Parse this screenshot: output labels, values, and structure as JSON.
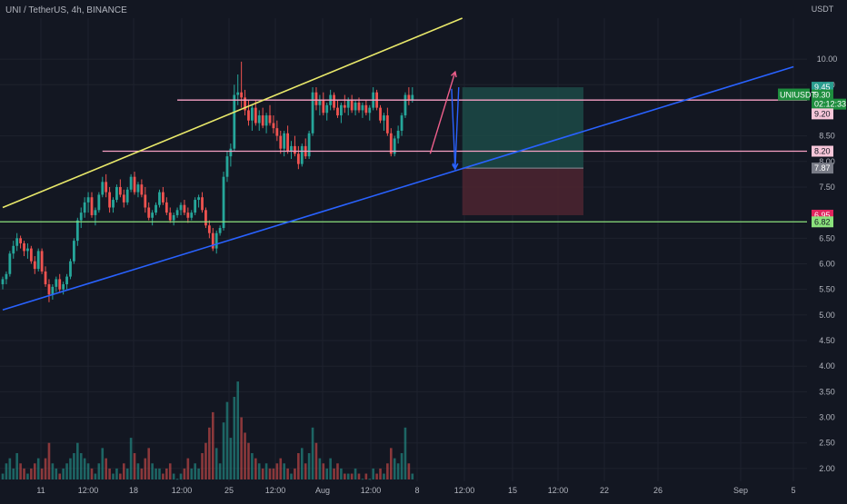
{
  "header": {
    "title": "UNI / TetherUS, 4h, BINANCE",
    "currency": "USDT"
  },
  "colors": {
    "background": "#131722",
    "up": "#26a69a",
    "down": "#ef5350",
    "grid": "#1e222d",
    "text": "#b2b5be",
    "yellow_line": "#e8e86a",
    "blue_line": "#2962ff",
    "pink_line": "#f7a1c4",
    "green_line": "#8be27c",
    "tp_zone": "#1c4a46",
    "sl_zone": "#4d2430"
  },
  "chart_data": {
    "type": "candlestick",
    "symbol": "UNIUSDT",
    "y_axis": {
      "min": 1.75,
      "max": 10.8,
      "ticks": [
        10.0,
        9.5,
        8.5,
        8.0,
        7.5,
        6.5,
        6.0,
        5.5,
        5.0,
        4.5,
        4.0,
        3.5,
        3.0,
        2.5,
        2.0
      ],
      "tick_labels": [
        "10.00",
        "9.50",
        "8.50",
        "8.00",
        "7.50",
        "6.50",
        "6.00",
        "5.50",
        "5.00",
        "4.50",
        "4.00",
        "3.50",
        "3.00",
        "2.50",
        "2.00"
      ]
    },
    "x_axis": {
      "tick_labels": [
        "11",
        "12:00",
        "18",
        "12:00",
        "25",
        "12:00",
        "Aug",
        "12:00",
        "8",
        "12:00",
        "15",
        "12:00",
        "22",
        "26",
        "Sep",
        "5"
      ]
    },
    "price_tags": [
      {
        "label": "9.45",
        "value": 9.45,
        "style": "teal"
      },
      {
        "label": "9.30",
        "value": 9.3,
        "style": "green"
      },
      {
        "label": "02:12:33",
        "value": 9.12,
        "style": "green-sub"
      },
      {
        "label": "9.20",
        "value": 8.93,
        "style": "pink"
      },
      {
        "label": "8.20",
        "value": 8.2,
        "style": "pink"
      },
      {
        "label": "7.87",
        "value": 7.87,
        "style": "gray"
      },
      {
        "label": "6.95",
        "value": 6.95,
        "style": "red"
      },
      {
        "label": "6.82",
        "value": 6.82,
        "style": "greenline"
      }
    ],
    "symbol_badge": "UNIUSDT",
    "horizontal_levels": [
      {
        "value": 9.2,
        "color": "pink",
        "from_bar": 49
      },
      {
        "value": 8.2,
        "color": "pink",
        "from_bar": 28
      },
      {
        "value": 6.82,
        "color": "green",
        "from_bar": 0
      }
    ],
    "trendlines": [
      {
        "color": "yellow",
        "p1": [
          0,
          7.1
        ],
        "p2": [
          129,
          10.8
        ]
      },
      {
        "color": "blue",
        "p1": [
          0,
          5.1
        ],
        "p2": [
          222,
          9.85
        ]
      }
    ],
    "position": {
      "entry": 7.87,
      "target": 9.45,
      "stop": 6.95,
      "from_bar": 129,
      "to_bar": 163
    },
    "projection_arrows": [
      [
        [
          120,
          8.15
        ],
        [
          127,
          9.75
        ]
      ],
      [
        [
          128,
          9.45
        ],
        [
          127,
          7.87
        ]
      ],
      [
        [
          126,
          9.42
        ],
        [
          127,
          7.85
        ]
      ]
    ],
    "candles": [
      [
        5.6,
        5.75,
        5.5,
        5.7,
        1.9
      ],
      [
        5.7,
        5.85,
        5.6,
        5.8,
        2.1
      ],
      [
        5.8,
        6.25,
        5.75,
        6.2,
        2.2
      ],
      [
        6.2,
        6.45,
        6.1,
        6.35,
        2.0
      ],
      [
        6.35,
        6.6,
        6.25,
        6.5,
        2.3
      ],
      [
        6.5,
        6.55,
        6.3,
        6.4,
        2.1
      ],
      [
        6.4,
        6.45,
        6.15,
        6.25,
        2.0
      ],
      [
        6.25,
        6.4,
        6.1,
        6.3,
        1.9
      ],
      [
        6.3,
        6.35,
        6.0,
        6.05,
        2.0
      ],
      [
        6.05,
        6.15,
        5.8,
        5.9,
        2.1
      ],
      [
        5.9,
        6.3,
        5.85,
        6.25,
        2.2
      ],
      [
        6.25,
        6.3,
        5.8,
        5.85,
        2.0
      ],
      [
        5.85,
        5.95,
        5.55,
        5.6,
        2.2
      ],
      [
        5.6,
        5.7,
        5.25,
        5.4,
        2.5
      ],
      [
        5.4,
        5.6,
        5.3,
        5.55,
        2.1
      ],
      [
        5.55,
        5.75,
        5.45,
        5.7,
        2.0
      ],
      [
        5.7,
        5.8,
        5.45,
        5.5,
        1.9
      ],
      [
        5.5,
        5.65,
        5.4,
        5.6,
        2.0
      ],
      [
        5.6,
        5.8,
        5.5,
        5.75,
        2.1
      ],
      [
        5.75,
        6.1,
        5.7,
        6.05,
        2.2
      ],
      [
        6.05,
        6.5,
        6.0,
        6.45,
        2.3
      ],
      [
        6.45,
        6.9,
        6.35,
        6.85,
        2.5
      ],
      [
        6.85,
        7.1,
        6.7,
        7.0,
        2.3
      ],
      [
        7.0,
        7.3,
        6.9,
        7.2,
        2.2
      ],
      [
        7.2,
        7.4,
        7.0,
        7.3,
        2.1
      ],
      [
        7.3,
        7.4,
        6.9,
        6.95,
        2.0
      ],
      [
        6.95,
        7.1,
        6.75,
        7.05,
        1.9
      ],
      [
        7.05,
        7.4,
        7.0,
        7.35,
        2.1
      ],
      [
        7.35,
        7.7,
        7.3,
        7.6,
        2.4
      ],
      [
        7.6,
        7.75,
        7.3,
        7.4,
        2.2
      ],
      [
        7.4,
        7.5,
        7.0,
        7.1,
        2.0
      ],
      [
        7.1,
        7.3,
        7.0,
        7.25,
        1.9
      ],
      [
        7.25,
        7.55,
        7.2,
        7.5,
        2.0
      ],
      [
        7.5,
        7.65,
        7.3,
        7.35,
        1.9
      ],
      [
        7.35,
        7.45,
        7.1,
        7.2,
        2.1
      ],
      [
        7.2,
        7.5,
        7.15,
        7.45,
        2.0
      ],
      [
        7.45,
        7.75,
        7.4,
        7.7,
        2.6
      ],
      [
        7.7,
        7.8,
        7.35,
        7.4,
        2.3
      ],
      [
        7.4,
        7.6,
        7.3,
        7.55,
        2.1
      ],
      [
        7.55,
        7.65,
        7.3,
        7.35,
        2.0
      ],
      [
        7.35,
        7.5,
        7.0,
        7.1,
        2.2
      ],
      [
        7.1,
        7.2,
        6.85,
        6.9,
        2.4
      ],
      [
        6.9,
        7.05,
        6.75,
        7.0,
        2.1
      ],
      [
        7.0,
        7.2,
        6.95,
        7.15,
        2.0
      ],
      [
        7.15,
        7.45,
        7.1,
        7.4,
        2.0
      ],
      [
        7.4,
        7.5,
        7.15,
        7.2,
        1.9
      ],
      [
        7.2,
        7.3,
        6.95,
        7.0,
        2.0
      ],
      [
        7.0,
        7.1,
        6.8,
        6.85,
        2.1
      ],
      [
        6.85,
        7.0,
        6.75,
        6.95,
        1.9
      ],
      [
        6.95,
        7.1,
        6.9,
        7.05,
        1.8
      ],
      [
        7.05,
        7.2,
        6.95,
        7.15,
        1.9
      ],
      [
        7.15,
        7.25,
        6.95,
        7.0,
        2.0
      ],
      [
        7.0,
        7.1,
        6.8,
        6.9,
        2.2
      ],
      [
        6.9,
        7.05,
        6.85,
        7.0,
        2.0
      ],
      [
        7.0,
        7.3,
        6.95,
        7.25,
        2.1
      ],
      [
        7.25,
        7.35,
        7.1,
        7.3,
        2.0
      ],
      [
        7.3,
        7.4,
        7.0,
        7.05,
        2.3
      ],
      [
        7.05,
        7.1,
        6.7,
        6.75,
        2.5
      ],
      [
        6.75,
        6.85,
        6.5,
        6.6,
        2.8
      ],
      [
        6.6,
        6.7,
        6.25,
        6.3,
        3.1
      ],
      [
        6.3,
        6.65,
        6.2,
        6.6,
        2.4
      ],
      [
        6.6,
        6.75,
        6.55,
        6.7,
        2.1
      ],
      [
        6.7,
        7.8,
        6.65,
        7.7,
        2.9
      ],
      [
        7.7,
        8.2,
        7.6,
        8.1,
        3.3
      ],
      [
        8.1,
        8.35,
        7.9,
        8.25,
        2.6
      ],
      [
        8.25,
        9.5,
        8.2,
        9.3,
        3.4
      ],
      [
        9.3,
        9.7,
        9.1,
        9.35,
        3.7
      ],
      [
        9.35,
        9.95,
        9.05,
        9.25,
        3.0
      ],
      [
        9.25,
        9.4,
        8.9,
        9.0,
        2.7
      ],
      [
        9.0,
        9.2,
        8.7,
        8.8,
        2.5
      ],
      [
        8.8,
        9.1,
        8.6,
        9.05,
        2.3
      ],
      [
        9.05,
        9.2,
        8.7,
        8.75,
        2.2
      ],
      [
        8.75,
        9.0,
        8.6,
        8.9,
        2.1
      ],
      [
        8.9,
        9.05,
        8.65,
        8.7,
        2.0
      ],
      [
        8.7,
        8.95,
        8.55,
        8.9,
        2.1
      ],
      [
        8.9,
        9.1,
        8.7,
        8.75,
        2.0
      ],
      [
        8.75,
        8.9,
        8.55,
        8.65,
        2.0
      ],
      [
        8.65,
        8.8,
        8.4,
        8.5,
        2.1
      ],
      [
        8.5,
        8.6,
        8.15,
        8.25,
        2.2
      ],
      [
        8.25,
        8.6,
        8.1,
        8.55,
        2.1
      ],
      [
        8.55,
        8.7,
        8.15,
        8.2,
        2.0
      ],
      [
        8.2,
        8.4,
        8.05,
        8.3,
        1.9
      ],
      [
        8.3,
        8.5,
        8.1,
        8.15,
        2.0
      ],
      [
        8.15,
        8.3,
        7.85,
        7.95,
        2.3
      ],
      [
        7.95,
        8.35,
        7.9,
        8.3,
        2.4
      ],
      [
        8.3,
        8.45,
        8.05,
        8.1,
        2.1
      ],
      [
        8.1,
        8.6,
        8.05,
        8.55,
        2.3
      ],
      [
        8.55,
        9.45,
        8.5,
        9.35,
        2.8
      ],
      [
        9.35,
        9.45,
        9.0,
        9.1,
        2.5
      ],
      [
        9.1,
        9.3,
        8.9,
        9.2,
        2.2
      ],
      [
        9.2,
        9.35,
        8.9,
        8.95,
        2.1
      ],
      [
        8.95,
        9.15,
        8.8,
        9.1,
        2.0
      ],
      [
        9.1,
        9.4,
        9.0,
        9.3,
        2.2
      ],
      [
        9.3,
        9.35,
        9.0,
        9.05,
        2.0
      ],
      [
        9.05,
        9.2,
        8.85,
        8.9,
        2.1
      ],
      [
        8.9,
        9.15,
        8.75,
        9.1,
        2.0
      ],
      [
        9.1,
        9.3,
        8.95,
        9.05,
        1.9
      ],
      [
        9.05,
        9.25,
        8.9,
        9.2,
        1.9
      ],
      [
        9.2,
        9.3,
        8.95,
        9.0,
        1.9
      ],
      [
        9.0,
        9.2,
        8.9,
        9.15,
        2.0
      ],
      [
        9.15,
        9.25,
        8.95,
        9.0,
        1.9
      ],
      [
        9.0,
        9.15,
        8.85,
        9.1,
        1.8
      ],
      [
        9.1,
        9.2,
        8.9,
        8.95,
        1.9
      ],
      [
        8.95,
        9.1,
        8.8,
        9.05,
        1.8
      ],
      [
        9.05,
        9.45,
        9.0,
        9.35,
        2.0
      ],
      [
        9.35,
        9.4,
        9.0,
        9.05,
        1.9
      ],
      [
        9.05,
        9.1,
        8.75,
        8.8,
        2.0
      ],
      [
        8.8,
        8.95,
        8.6,
        8.9,
        1.9
      ],
      [
        8.9,
        9.05,
        8.5,
        8.55,
        2.1
      ],
      [
        8.55,
        8.65,
        8.1,
        8.15,
        2.4
      ],
      [
        8.15,
        8.5,
        8.1,
        8.45,
        2.2
      ],
      [
        8.45,
        8.7,
        8.35,
        8.6,
        2.1
      ],
      [
        8.6,
        8.95,
        8.5,
        8.9,
        2.3
      ],
      [
        8.9,
        9.35,
        8.85,
        9.3,
        2.8
      ],
      [
        9.3,
        9.45,
        9.1,
        9.2,
        2.1
      ],
      [
        9.2,
        9.45,
        9.15,
        9.3,
        1.9
      ]
    ]
  }
}
